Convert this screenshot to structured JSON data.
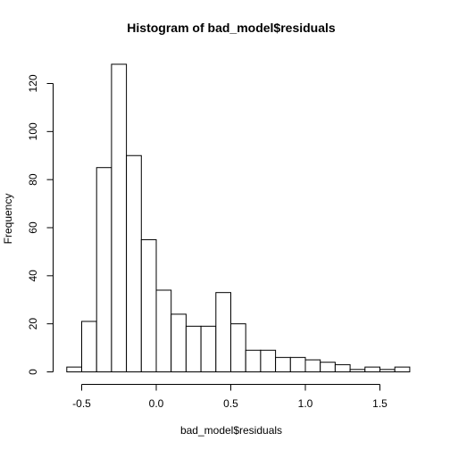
{
  "chart_data": {
    "type": "bar",
    "title": "Histogram of bad_model$residuals",
    "xlabel": "bad_model$residuals",
    "ylabel": "Frequency",
    "bin_width": 0.1,
    "bin_edges": [
      -0.6,
      -0.5,
      -0.4,
      -0.3,
      -0.2,
      -0.1,
      0.0,
      0.1,
      0.2,
      0.3,
      0.4,
      0.5,
      0.6,
      0.7,
      0.8,
      0.9,
      1.0,
      1.1,
      1.2,
      1.3,
      1.4,
      1.5,
      1.6,
      1.7
    ],
    "values": [
      2,
      21,
      85,
      128,
      90,
      55,
      34,
      24,
      19,
      19,
      33,
      20,
      9,
      9,
      6,
      6,
      5,
      4,
      3,
      1,
      2,
      1,
      2
    ],
    "xlim": [
      -0.6,
      1.7
    ],
    "ylim": [
      0,
      128
    ],
    "x_ticks": [
      -0.5,
      0.0,
      0.5,
      1.0,
      1.5
    ],
    "x_tick_labels": [
      "-0.5",
      "0.0",
      "0.5",
      "1.0",
      "1.5"
    ],
    "y_ticks": [
      0,
      20,
      40,
      60,
      80,
      100,
      120
    ],
    "y_tick_labels": [
      "0",
      "20",
      "40",
      "60",
      "80",
      "100",
      "120"
    ],
    "grid": false,
    "bar_fill": "#ffffff",
    "bar_stroke": "#000000"
  }
}
